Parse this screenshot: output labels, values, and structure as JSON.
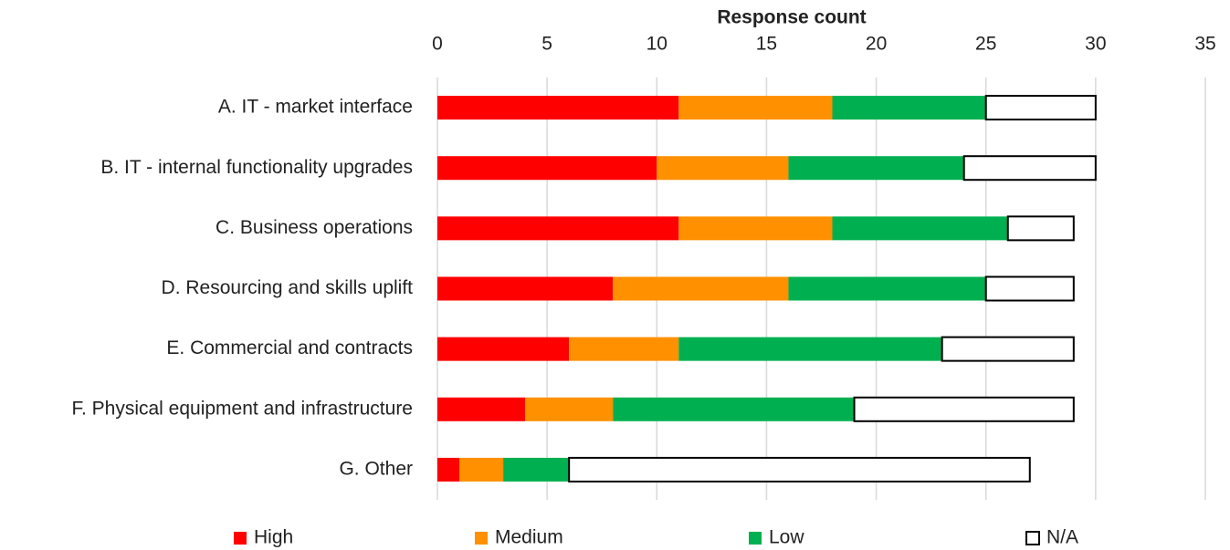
{
  "chart_data": {
    "type": "stacked_barh",
    "xlabel": "Response count",
    "categories": [
      "A. IT - market interface",
      "B. IT - internal functionality upgrades",
      "C. Business operations",
      "D. Resourcing and skills uplift",
      "E. Commercial and contracts",
      "F. Physical equipment and infrastructure",
      "G. Other"
    ],
    "series": [
      {
        "name": "High",
        "color": "#ff0000",
        "values": [
          11,
          10,
          11,
          8,
          6,
          4,
          1
        ]
      },
      {
        "name": "Medium",
        "color": "#ff9000",
        "values": [
          7,
          6,
          7,
          8,
          5,
          4,
          2
        ]
      },
      {
        "name": "Low",
        "color": "#00b050",
        "values": [
          7,
          8,
          8,
          9,
          12,
          11,
          3
        ]
      },
      {
        "name": "N/A",
        "color": "#ffffff",
        "edgecolor": "#000000",
        "values": [
          5,
          6,
          3,
          4,
          6,
          10,
          21
        ]
      }
    ],
    "xlim": [
      0,
      35
    ],
    "xticks": [
      0,
      5,
      10,
      15,
      20,
      25,
      30,
      35
    ],
    "grid": true,
    "legend": "bottom"
  }
}
